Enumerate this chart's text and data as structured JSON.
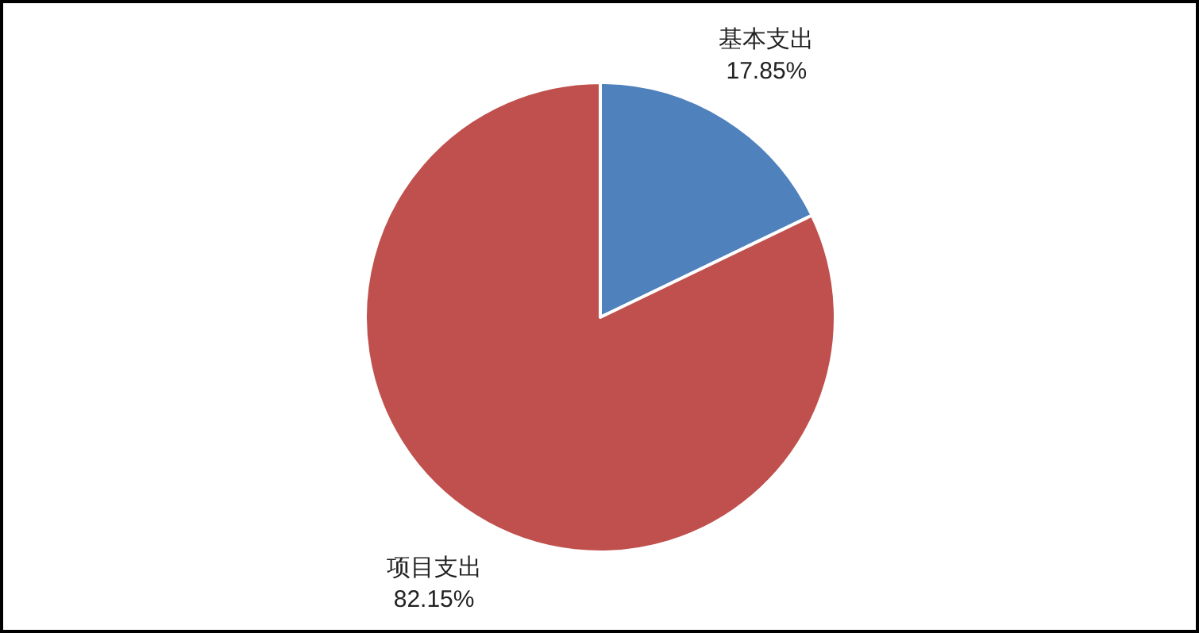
{
  "chart_data": {
    "type": "pie",
    "categories": [
      "基本支出",
      "项目支出"
    ],
    "values": [
      17.85,
      82.15
    ],
    "colors": [
      "#4f81bd",
      "#c0504d"
    ],
    "value_labels": [
      "17.85%",
      "82.15%"
    ]
  }
}
